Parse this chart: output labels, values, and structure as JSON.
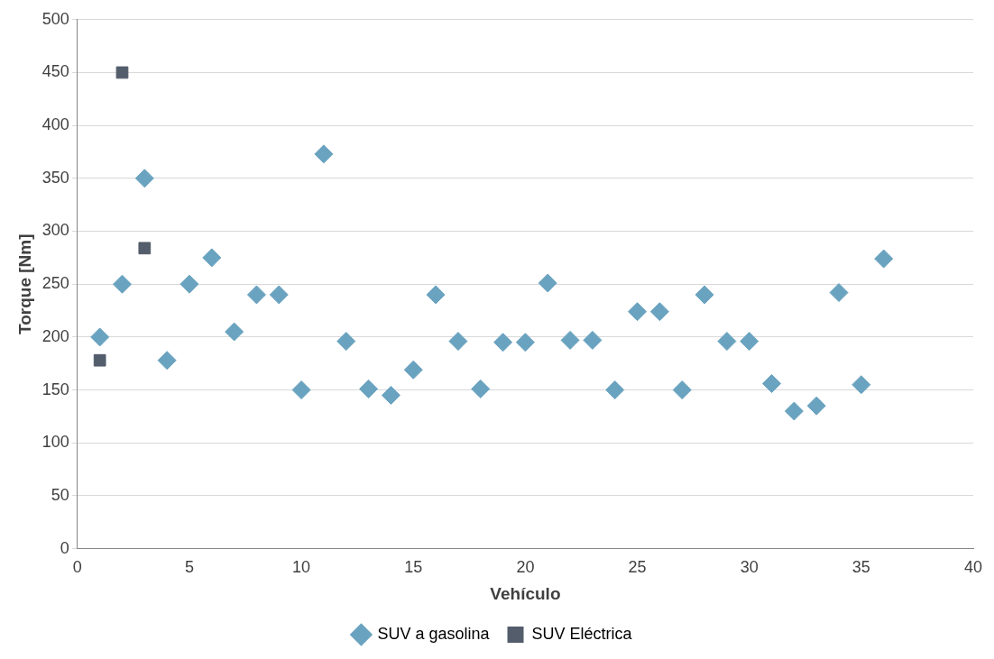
{
  "chart_data": {
    "type": "scatter",
    "xlabel": "Vehículo",
    "ylabel": "Torque [Nm]",
    "xlim": [
      0,
      40
    ],
    "xticks": [
      0,
      5,
      10,
      15,
      20,
      25,
      30,
      35,
      40
    ],
    "ylim": [
      0,
      500
    ],
    "yticks": [
      0,
      50,
      100,
      150,
      200,
      250,
      300,
      350,
      400,
      450,
      500
    ],
    "grid": "y",
    "legend": "bottom",
    "series": [
      {
        "name": "SUV a gasolina",
        "color": "#6aa3c0",
        "marker": "diamond",
        "x": [
          1,
          2,
          3,
          4,
          5,
          6,
          7,
          8,
          9,
          10,
          11,
          12,
          13,
          14,
          15,
          16,
          17,
          18,
          19,
          20,
          21,
          22,
          23,
          24,
          25,
          26,
          27,
          28,
          29,
          30,
          31,
          32,
          33,
          34,
          35,
          36
        ],
        "values": [
          200,
          250,
          350,
          178,
          250,
          275,
          205,
          240,
          240,
          150,
          373,
          196,
          151,
          145,
          169,
          240,
          196,
          151,
          195,
          195,
          251,
          197,
          197,
          150,
          224,
          224,
          150,
          240,
          196,
          196,
          156,
          130,
          135,
          242,
          155,
          274
        ]
      },
      {
        "name": "SUV Eléctrica",
        "color": "#535d6b",
        "marker": "square",
        "x": [
          1,
          2,
          3
        ],
        "values": [
          178,
          450,
          284
        ]
      }
    ]
  }
}
